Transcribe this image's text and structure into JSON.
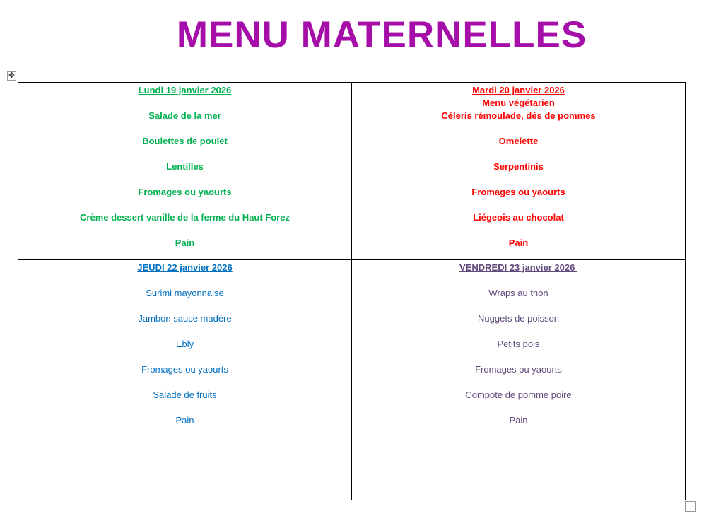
{
  "title": "MENU MATERNELLES",
  "colors": {
    "title": "#a50ea8",
    "lundi": "#00b050",
    "mardi": "#ff0000",
    "jeudi": "#0070c0",
    "vendredi": "#604a7b"
  },
  "days": [
    {
      "date": "Lundi 19 janvier 2026",
      "items": [
        "Salade de la mer",
        "Boulettes de poulet",
        "Lentilles",
        "Fromages ou yaourts",
        "Crème dessert vanille de la ferme du Haut Forez",
        "Pain"
      ]
    },
    {
      "date": "Mardi 20 janvier 2026",
      "subtitle": "Menu végétarien",
      "items": [
        "Céleris rémoulade, dés de pommes",
        "Omelette",
        "Serpentinis",
        "Fromages ou yaourts",
        "Liégeois au chocolat",
        "Pain"
      ]
    },
    {
      "date": "JEUDI 22 janvier 2026",
      "items": [
        "Surimi mayonnaise",
        "Jambon sauce madère",
        "Ebly",
        "Fromages ou yaourts",
        "Salade de fruits",
        "Pain"
      ]
    },
    {
      "date": "VENDREDI 23 janvier 2026 ",
      "items": [
        "Wraps au thon",
        "Nuggets de poisson",
        "Petits pois",
        "Fromages ou yaourts",
        "Compote de pomme poire",
        "Pain"
      ]
    }
  ]
}
